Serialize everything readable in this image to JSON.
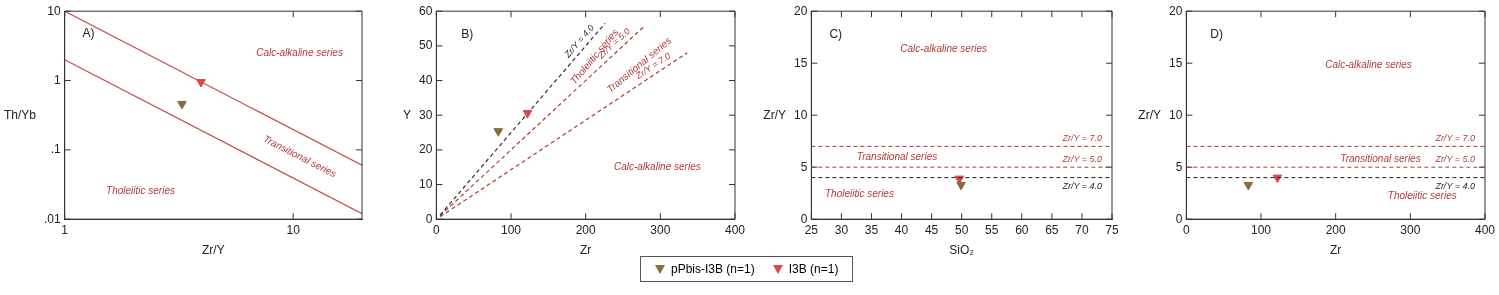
{
  "chart_data": [
    {
      "type": "scatter",
      "xlabel": "Zr/Y",
      "ylabel": "Th/Yb",
      "log": "xy",
      "grid": false,
      "marker": "triangle",
      "legend": "bottom right",
      "xlim": [
        1,
        20
      ],
      "ylim": [
        0.01,
        10
      ],
      "xticks": [
        1,
        10
      ],
      "yticks": [
        {
          "value": 0.01,
          "label": ".01"
        },
        {
          "value": 0.1,
          "label": ".1"
        },
        1,
        10
      ],
      "annotations": [
        "A)",
        "Calc-alkaline series",
        "Transitional series",
        "Tholeiitic series"
      ],
      "series": [
        {
          "name": "pPbis-I3B (n=1)",
          "color": "#8b6b3d",
          "x": [
            3.26
          ],
          "values": [
            0.46
          ]
        },
        {
          "name": "I3B (n=1)",
          "color": "#d9484a",
          "x": [
            3.95
          ],
          "values": [
            0.95
          ]
        },
        {
          "type": "line",
          "color": "#c0504d",
          "line_style": "solid",
          "marker": "none",
          "x": [
            1,
            20
          ],
          "values": [
            10,
            0.06
          ]
        },
        {
          "type": "line",
          "color": "#c0504d",
          "line_style": "solid",
          "marker": "none",
          "x": [
            1,
            20
          ],
          "values": [
            2,
            0.012
          ]
        }
      ]
    },
    {
      "type": "scatter",
      "xlabel": "Zr",
      "ylabel": "Y",
      "grid": false,
      "marker": "triangle",
      "xlim": [
        0,
        400
      ],
      "ylim": [
        0,
        60
      ],
      "xticks": [
        0,
        100,
        200,
        300,
        400
      ],
      "yticks": [
        0,
        10,
        20,
        30,
        40,
        50,
        60
      ],
      "annotations": [
        "B)",
        "Tholeiitic series",
        "Transitional series",
        "Calc-alkaline series"
      ],
      "series": [
        {
          "color": "#8b6b3d",
          "x": [
            83
          ],
          "values": [
            25.4
          ]
        },
        {
          "color": "#d9484a",
          "x": [
            122
          ],
          "values": [
            30.6
          ]
        },
        {
          "type": "line",
          "name": "Zr/Y = 4.0",
          "color": "#333333",
          "line_style": "dashed",
          "marker": "none",
          "x": [
            5,
            226
          ],
          "values": [
            1.2,
            56.5
          ]
        },
        {
          "type": "line",
          "name": "Zr/Y = 5.0",
          "color": "#b03a3a",
          "line_style": "dashed",
          "marker": "none",
          "x": [
            5,
            278
          ],
          "values": [
            1,
            55.6
          ]
        },
        {
          "type": "line",
          "name": "Zr/Y = 7.0",
          "color": "#b03a3a",
          "line_style": "dashed",
          "marker": "none",
          "x": [
            5,
            336
          ],
          "values": [
            0.7,
            48
          ]
        }
      ]
    },
    {
      "type": "scatter",
      "xlabel": "SiO₂",
      "ylabel": "Zr/Y",
      "grid": false,
      "marker": "triangle",
      "xlim": [
        25,
        75
      ],
      "ylim": [
        0,
        20
      ],
      "xticks": [
        25,
        30,
        35,
        40,
        45,
        50,
        55,
        60,
        65,
        70,
        75
      ],
      "yticks": [
        0,
        5,
        10,
        15,
        20
      ],
      "annotations": [
        "C)",
        "Calc-alkaline series",
        "Transitional series",
        "Tholeiitic series"
      ],
      "ref_lines": [
        {
          "axis": "y",
          "value": 7,
          "label": "Zr/Y = 7.0",
          "color": "#b03a3a",
          "line_style": "dashed"
        },
        {
          "axis": "y",
          "value": 5,
          "label": "Zr/Y = 5.0",
          "color": "#b03a3a",
          "line_style": "dashed"
        },
        {
          "axis": "y",
          "value": 4,
          "label": "Zr/Y = 4.0",
          "color": "#222222",
          "line_style": "dashed"
        }
      ],
      "series": [
        {
          "color": "#8b6b3d",
          "x": [
            49.9
          ],
          "values": [
            3.3
          ]
        },
        {
          "color": "#d9484a",
          "x": [
            49.6
          ],
          "values": [
            3.9
          ]
        }
      ]
    },
    {
      "type": "scatter",
      "xlabel": "Zr",
      "ylabel": "Zr/Y",
      "grid": false,
      "marker": "triangle",
      "xlim": [
        0,
        400
      ],
      "ylim": [
        0,
        20
      ],
      "xticks": [
        0,
        100,
        200,
        300,
        400
      ],
      "yticks": [
        0,
        5,
        10,
        15,
        20
      ],
      "annotations": [
        "D)",
        "Calc-alkaline series",
        "Transitional series",
        "Tholeiitic series"
      ],
      "ref_lines": [
        {
          "axis": "y",
          "value": 7,
          "label": "Zr/Y = 7.0",
          "color": "#b03a3a",
          "line_style": "dashed"
        },
        {
          "axis": "y",
          "value": 5,
          "label": "Zr/Y = 5.0",
          "color": "#b03a3a",
          "line_style": "dashed"
        },
        {
          "axis": "y",
          "value": 4,
          "label": "Zr/Y = 4.0",
          "color": "#222222",
          "line_style": "dashed"
        }
      ],
      "series": [
        {
          "color": "#8b6b3d",
          "x": [
            83
          ],
          "values": [
            3.3
          ]
        },
        {
          "color": "#d9484a",
          "x": [
            122
          ],
          "values": [
            4.0
          ]
        }
      ]
    }
  ]
}
